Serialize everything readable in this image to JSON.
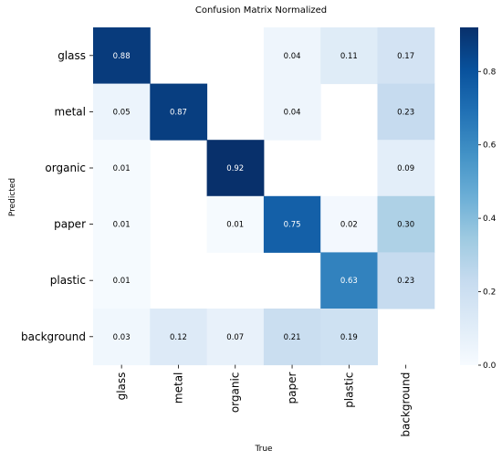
{
  "chart_data": {
    "type": "heatmap",
    "title": "Confusion Matrix Normalized",
    "xlabel": "True",
    "ylabel": "Predicted",
    "x_categories": [
      "glass",
      "metal",
      "organic",
      "paper",
      "plastic",
      "background"
    ],
    "y_categories": [
      "glass",
      "metal",
      "organic",
      "paper",
      "plastic",
      "background"
    ],
    "values": [
      [
        0.88,
        null,
        null,
        0.04,
        0.11,
        0.17
      ],
      [
        0.05,
        0.87,
        null,
        0.04,
        null,
        0.23
      ],
      [
        0.01,
        null,
        0.92,
        null,
        null,
        0.09
      ],
      [
        0.01,
        null,
        0.01,
        0.75,
        0.02,
        0.3
      ],
      [
        0.01,
        null,
        null,
        null,
        0.63,
        0.23
      ],
      [
        0.03,
        0.12,
        0.07,
        0.21,
        0.19,
        null
      ]
    ],
    "colorbar": {
      "min": 0.0,
      "max": 0.92,
      "ticks": [
        "0.0",
        "0.2",
        "0.4",
        "0.6",
        "0.8"
      ],
      "colormap": "Blues"
    }
  }
}
